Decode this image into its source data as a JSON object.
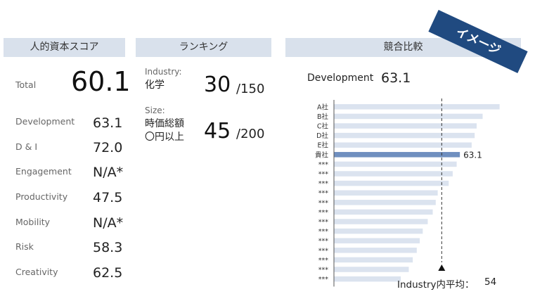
{
  "headers": {
    "score": "人的資本スコア",
    "ranking": "ランキング",
    "comparison": "競合比較"
  },
  "badge": "イメージ",
  "score": {
    "total_label": "Total",
    "total_value": "60.1",
    "metrics": [
      {
        "label": "Development",
        "value": "63.1"
      },
      {
        "label": "D & I",
        "value": "72.0"
      },
      {
        "label": "Engagement",
        "value": "N/A*"
      },
      {
        "label": "Productivity",
        "value": "47.5"
      },
      {
        "label": "Mobility",
        "value": "N/A*"
      },
      {
        "label": "Risk",
        "value": "58.3"
      },
      {
        "label": "Creativity",
        "value": "62.5"
      }
    ]
  },
  "ranking": {
    "industry": {
      "label": "Industry:",
      "name": "化学",
      "rank": "30",
      "total": "/150"
    },
    "size": {
      "label": "Size:",
      "name_line1": "時価総額",
      "name_line2": "〇円以上",
      "rank": "45",
      "total": "/200"
    }
  },
  "comparison": {
    "metric_label": "Development",
    "metric_value": "63.1",
    "industry_avg_label": "Industry内平均：",
    "industry_avg_value": "54"
  },
  "colors": {
    "header_bg": "#d9e1ec",
    "bar": "#dbe3ef",
    "bar_highlight": "#6f8fbf",
    "badge": "#204a80"
  },
  "chart_data": {
    "type": "bar",
    "orientation": "horizontal",
    "title": "Development",
    "categories": [
      "A社",
      "B社",
      "C社",
      "D社",
      "E社",
      "貴社",
      "***",
      "***",
      "***",
      "***",
      "***",
      "***",
      "***",
      "***",
      "***",
      "***",
      "***",
      "***",
      "***"
    ],
    "values": [
      83.0,
      74.5,
      71.5,
      70.5,
      69.0,
      63.1,
      61.5,
      59.5,
      57.5,
      52.0,
      51.0,
      49.5,
      47.0,
      44.5,
      43.0,
      41.5,
      39.5,
      37.5,
      33.5
    ],
    "highlight_index": 5,
    "highlight_label": "63.1",
    "reference_line": {
      "value": 54,
      "label": "Industry内平均： 54"
    },
    "xlim": [
      0,
      87
    ]
  }
}
